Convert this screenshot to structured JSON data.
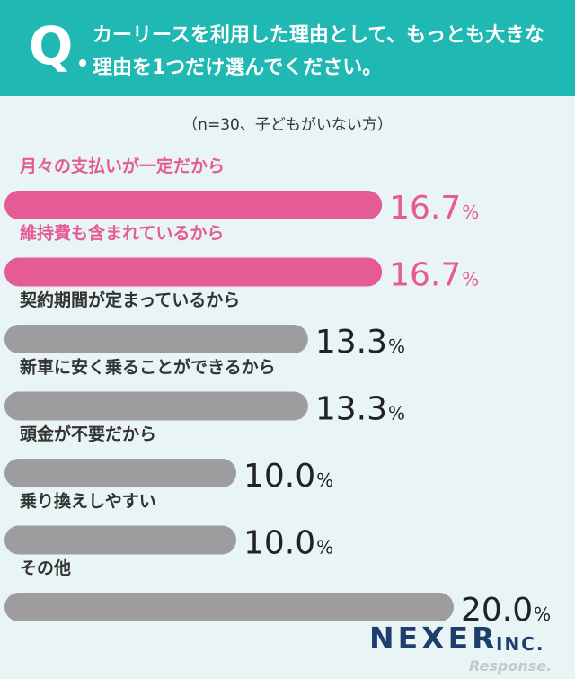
{
  "question": {
    "mark": "Q",
    "text": "カーリースを利用した理由として、もっとも大きな理由を1つだけ選んでください。"
  },
  "subtitle": "（n=30、子どもがいない方）",
  "colors": {
    "header_bg": "#1fb8b3",
    "highlight": "#e45b95",
    "default": "#9d9d9f",
    "page_bg": "#e9f5f4",
    "value_text": "#222222"
  },
  "chart_data": {
    "type": "bar",
    "orientation": "horizontal",
    "unit": "%",
    "categories": [
      "月々の支払いが一定だから",
      "維持費も含まれているから",
      "契約期間が定まっているから",
      "新車に安く乗ることができるから",
      "頭金が不要だから",
      "乗り換えしやすい",
      "その他"
    ],
    "values": [
      16.7,
      16.7,
      13.3,
      13.3,
      10.0,
      10.0,
      20.0
    ],
    "value_labels": [
      "16.7",
      "16.7",
      "13.3",
      "13.3",
      "10.0",
      "10.0",
      "20.0"
    ],
    "highlighted": [
      true,
      true,
      false,
      false,
      false,
      false,
      false
    ]
  },
  "brand": {
    "logo": "NEXER",
    "logo_suffix": "INC.",
    "watermark": "Response."
  }
}
